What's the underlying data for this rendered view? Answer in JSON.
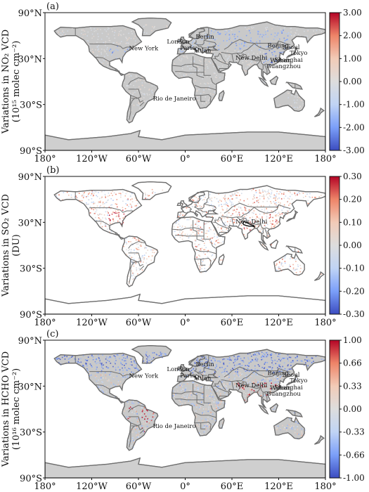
{
  "panels": [
    {
      "label": "(a)",
      "ylabel_line1": "Variations in NO₂ VCD",
      "ylabel_line2": "(10¹⁵ molec cm⁻²)",
      "colorbar_ticks": [
        "3.00",
        "2.00",
        "1.00",
        "0.00",
        "-1.00",
        "-2.00",
        "-3.00"
      ],
      "colorbar_range": [
        -3,
        3
      ],
      "cities": [
        "Berlin",
        "London",
        "Paris",
        "Milan",
        "New York",
        "Beijing",
        "Seoul",
        "Tokyo",
        "Shanghai",
        "Wuhan",
        "New Delhi",
        "Guangzhou",
        "Rio de Janeiro"
      ],
      "pattern": "no2"
    },
    {
      "label": "(b)",
      "ylabel_line1": "Variations in SO₂ VCD",
      "ylabel_line2": "(DU)",
      "colorbar_ticks": [
        "0.30",
        "0.20",
        "0.10",
        "0.00",
        "-0.10",
        "-0.20",
        "-0.30"
      ],
      "colorbar_range": [
        -0.3,
        0.3
      ],
      "cities": [
        "New Delhi"
      ],
      "pattern": "so2"
    },
    {
      "label": "(c)",
      "ylabel_line1": "Variations in HCHO VCD",
      "ylabel_line2": "(10¹⁶ molec cm⁻²)",
      "colorbar_ticks": [
        "1.00",
        "0.66",
        "0.33",
        "0.00",
        "-0.33",
        "-0.66",
        "-1.00"
      ],
      "colorbar_range": [
        -1,
        1
      ],
      "cities": [
        "Berlin",
        "London",
        "Paris",
        "Milan",
        "New York",
        "Beijing",
        "Seoul",
        "Tokyo",
        "Shanghai",
        "Wuhan",
        "New Delhi",
        "Guangzhou",
        "Rio de Janeiro"
      ],
      "pattern": "hcho"
    }
  ],
  "axes": {
    "x_ticks": [
      "180°",
      "120°W",
      "60°W",
      "0°",
      "60°E",
      "120°E",
      "180°"
    ],
    "y_ticks": [
      "90°N",
      "30°N",
      "30°S",
      "90°S"
    ]
  },
  "colors": {
    "land": "#c9c9c9",
    "coast": "#6f6f6f",
    "colormap": [
      "#3b4cc0",
      "#7b9ff9",
      "#c0d4f5",
      "#dddddd",
      "#f2cbb7",
      "#ee8468",
      "#b40426"
    ]
  }
}
